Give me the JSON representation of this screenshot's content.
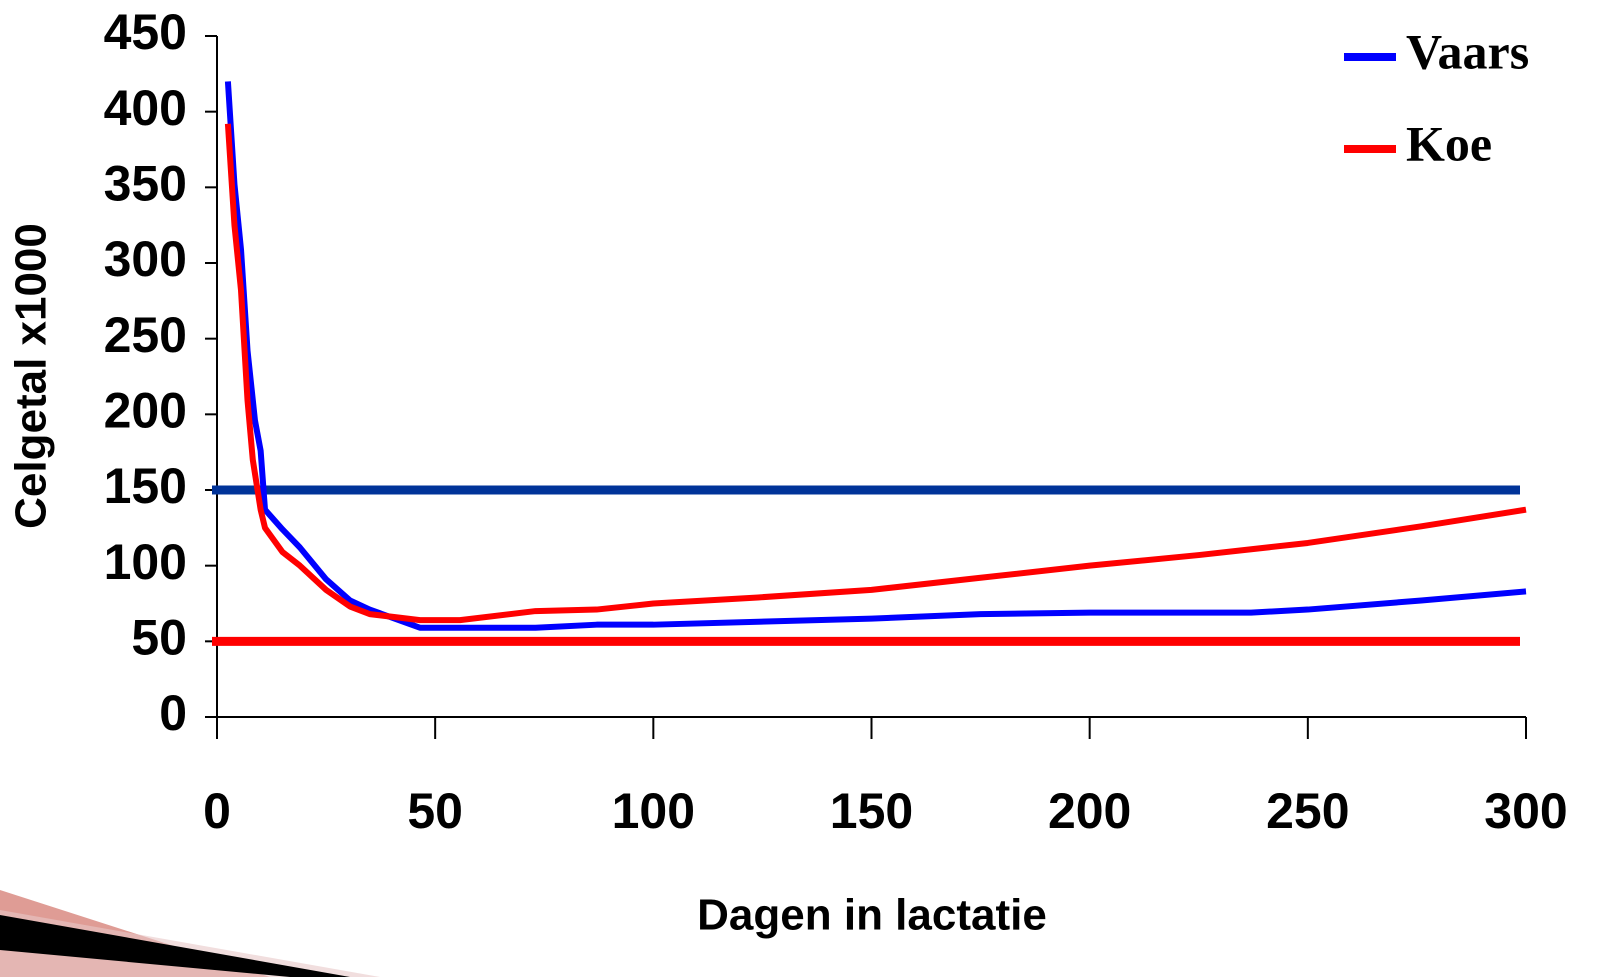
{
  "chart_data": {
    "type": "line",
    "x_label": "Dagen in lactatie",
    "y_label": "Celgetal x1000",
    "xlim": [
      0,
      300
    ],
    "xticks": [
      0,
      50,
      100,
      150,
      200,
      250,
      300
    ],
    "ylim": [
      0,
      450
    ],
    "yticks": [
      0,
      50,
      100,
      150,
      200,
      250,
      300,
      350,
      400,
      450
    ],
    "legend": "top-right",
    "series": [
      {
        "name": "Vaars",
        "color": "#0000ff",
        "x": [
          2.5,
          4,
          5.5,
          7,
          8.7,
          10,
          11,
          15,
          19,
          25,
          30.5,
          35,
          46.5,
          73,
          87,
          100,
          150,
          175,
          200,
          237,
          250,
          276,
          300
        ],
        "values": [
          420,
          352,
          309,
          242,
          196,
          176,
          137,
          124,
          112,
          91,
          77,
          71,
          59,
          59,
          61,
          61,
          65,
          68,
          69,
          69,
          71,
          77,
          83
        ]
      },
      {
        "name": "Koe",
        "color": "#ff0000",
        "x": [
          2.5,
          4,
          5.5,
          7,
          8.2,
          10,
          11,
          15,
          19,
          25,
          30.5,
          35,
          46.5,
          55.7,
          73,
          87,
          100,
          124,
          150,
          175,
          200,
          225,
          250,
          276,
          300
        ],
        "values": [
          392,
          325,
          282,
          209,
          170,
          137,
          125,
          109,
          100,
          84,
          73,
          68,
          64,
          64,
          70,
          71,
          75,
          79,
          84,
          92,
          100,
          107,
          115,
          126,
          137
        ]
      }
    ],
    "reference_lines": [
      {
        "value": 150,
        "color": "#003399"
      },
      {
        "value": 50,
        "color": "#ff0000"
      }
    ]
  }
}
